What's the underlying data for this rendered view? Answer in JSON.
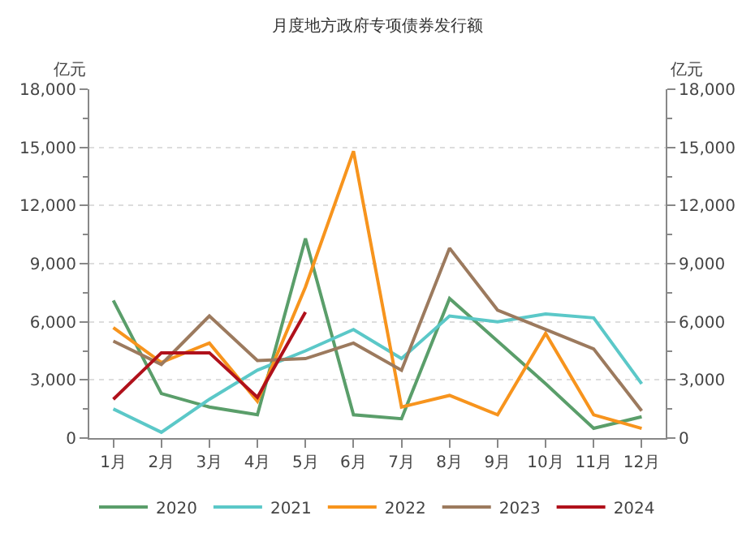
{
  "chart_data": {
    "type": "line",
    "title": "月度地方政府专项债券发行额",
    "ylabel": "亿元",
    "y2label": "亿元",
    "categories": [
      "1月",
      "2月",
      "3月",
      "4月",
      "5月",
      "6月",
      "7月",
      "8月",
      "9月",
      "10月",
      "11月",
      "12月"
    ],
    "series": [
      {
        "name": "2020",
        "color": "#5a9e6a",
        "values": [
          7100,
          2300,
          1600,
          1200,
          10300,
          1200,
          1000,
          7200,
          5000,
          2800,
          500,
          1100
        ]
      },
      {
        "name": "2021",
        "color": "#5bc8c8",
        "values": [
          1500,
          300,
          2000,
          3500,
          4500,
          5600,
          4100,
          6300,
          6000,
          6400,
          6200,
          2800
        ]
      },
      {
        "name": "2022",
        "color": "#f7941d",
        "values": [
          5700,
          3900,
          4900,
          1900,
          7800,
          14800,
          1600,
          2200,
          1200,
          5400,
          1200,
          500
        ]
      },
      {
        "name": "2023",
        "color": "#9c7a5e",
        "values": [
          5000,
          3800,
          6300,
          4000,
          4100,
          4900,
          3500,
          9800,
          6600,
          5600,
          4600,
          1400
        ]
      },
      {
        "name": "2024",
        "color": "#b0111b",
        "values": [
          2000,
          4400,
          4400,
          2100,
          6500,
          null,
          null,
          null,
          null,
          null,
          null,
          null
        ]
      }
    ],
    "ylim": [
      0,
      18000
    ],
    "yticks": [
      {
        "value": 0,
        "label": "0"
      },
      {
        "value": 3000,
        "label": "3,000"
      },
      {
        "value": 6000,
        "label": "6,000"
      },
      {
        "value": 9000,
        "label": "9,000"
      },
      {
        "value": 12000,
        "label": "12,000"
      },
      {
        "value": 15000,
        "label": "15,000"
      },
      {
        "value": 18000,
        "label": "18,000"
      }
    ],
    "y2lim": [
      0,
      18000
    ],
    "y2ticks": [
      {
        "value": 0,
        "label": "0"
      },
      {
        "value": 3000,
        "label": "3,000"
      },
      {
        "value": 6000,
        "label": "6,000"
      },
      {
        "value": 9000,
        "label": "9,000"
      },
      {
        "value": 12000,
        "label": "12,000"
      },
      {
        "value": 15000,
        "label": "15,000"
      },
      {
        "value": 18000,
        "label": "18,000"
      }
    ],
    "grid": "y",
    "legend": "bottom",
    "marker": "none",
    "line_style": "solid"
  }
}
